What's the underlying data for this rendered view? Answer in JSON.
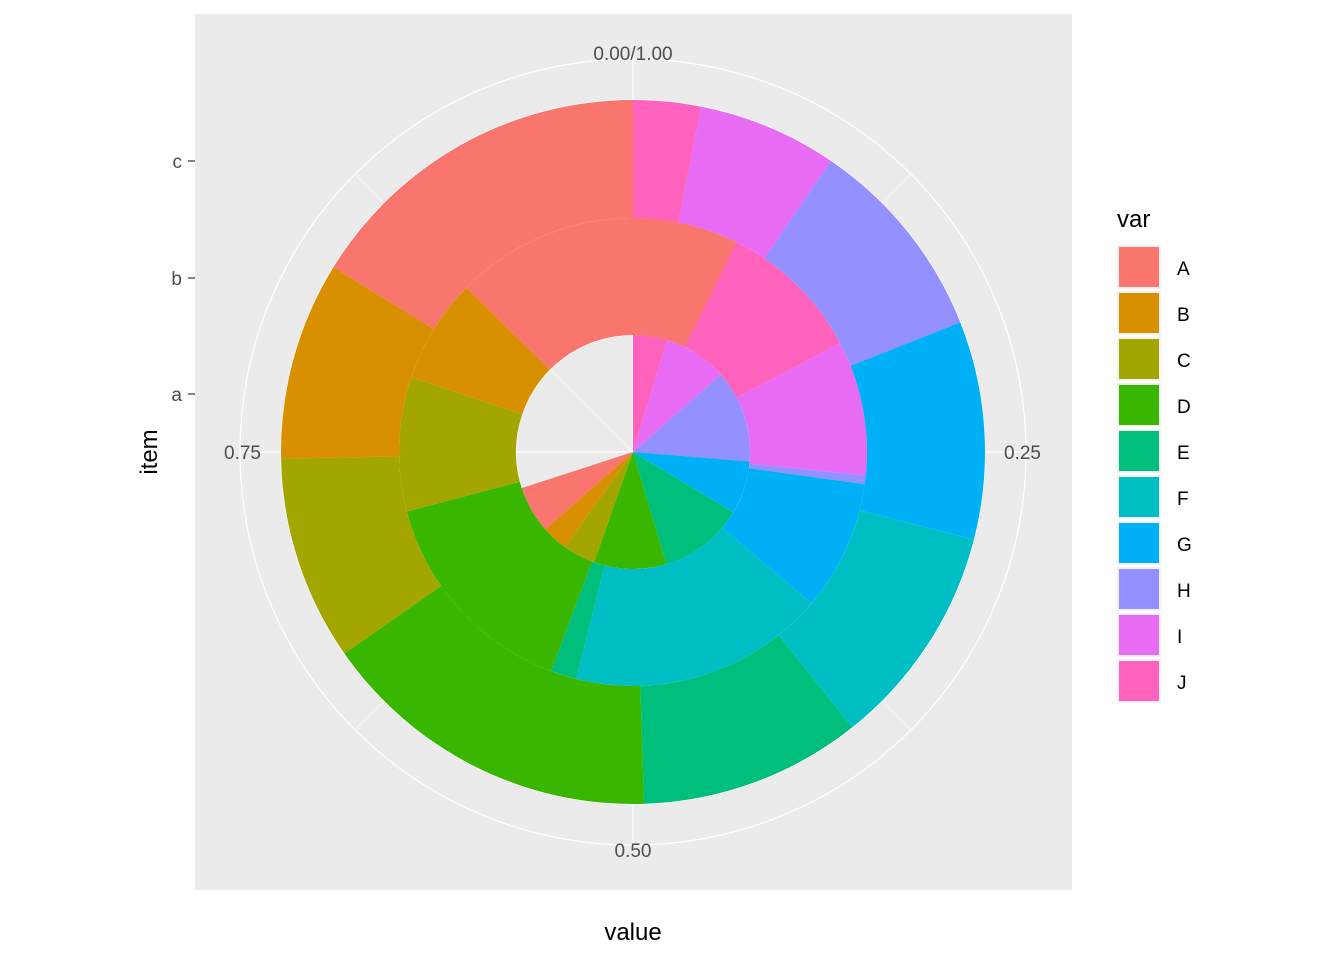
{
  "chart_data": {
    "type": "pie",
    "subtype": "stacked-bar-polar (coord_polar, theta = value)",
    "xlabel": "value",
    "ylabel": "item",
    "items": [
      "a",
      "b",
      "c"
    ],
    "theta_ticks": [
      "0.00/1.00",
      "0.25",
      "0.50",
      "0.75"
    ],
    "theta_tick_values": [
      0,
      0.25,
      0.5,
      0.75
    ],
    "stack_order": [
      "J",
      "I",
      "H",
      "G",
      "F",
      "E",
      "D",
      "C",
      "B",
      "A"
    ],
    "legend": {
      "title": "var",
      "position": "right",
      "entries": [
        {
          "label": "A",
          "color": "#F8766D"
        },
        {
          "label": "B",
          "color": "#D89000"
        },
        {
          "label": "C",
          "color": "#A3A500"
        },
        {
          "label": "D",
          "color": "#39B600"
        },
        {
          "label": "E",
          "color": "#00BF7D"
        },
        {
          "label": "F",
          "color": "#00BFC4"
        },
        {
          "label": "G",
          "color": "#00B0F6"
        },
        {
          "label": "H",
          "color": "#9590FF"
        },
        {
          "label": "I",
          "color": "#E76BF3"
        },
        {
          "label": "J",
          "color": "#FF62BC"
        }
      ]
    },
    "series": [
      {
        "item": "a",
        "values": {
          "A": 0.065,
          "B": 0.036,
          "C": 0.045,
          "D": 0.1,
          "E": 0.118,
          "F": 0.0,
          "G": 0.073,
          "H": 0.128,
          "I": 0.088,
          "J": 0.047
        }
      },
      {
        "item": "b",
        "values": {
          "A": 0.199,
          "B": 0.072,
          "C": 0.093,
          "D": 0.152,
          "E": 0.018,
          "F": 0.177,
          "G": 0.09,
          "H": 0.006,
          "I": 0.093,
          "J": 0.173
        }
      },
      {
        "item": "c",
        "values": {
          "A": 0.162,
          "B": 0.091,
          "C": 0.094,
          "D": 0.158,
          "E": 0.102,
          "F": 0.103,
          "G": 0.1,
          "H": 0.095,
          "I": 0.064,
          "J": 0.031
        }
      }
    ],
    "panel_background": "#EBEBEB",
    "grid_color": "#FFFFFF",
    "grid": true
  }
}
